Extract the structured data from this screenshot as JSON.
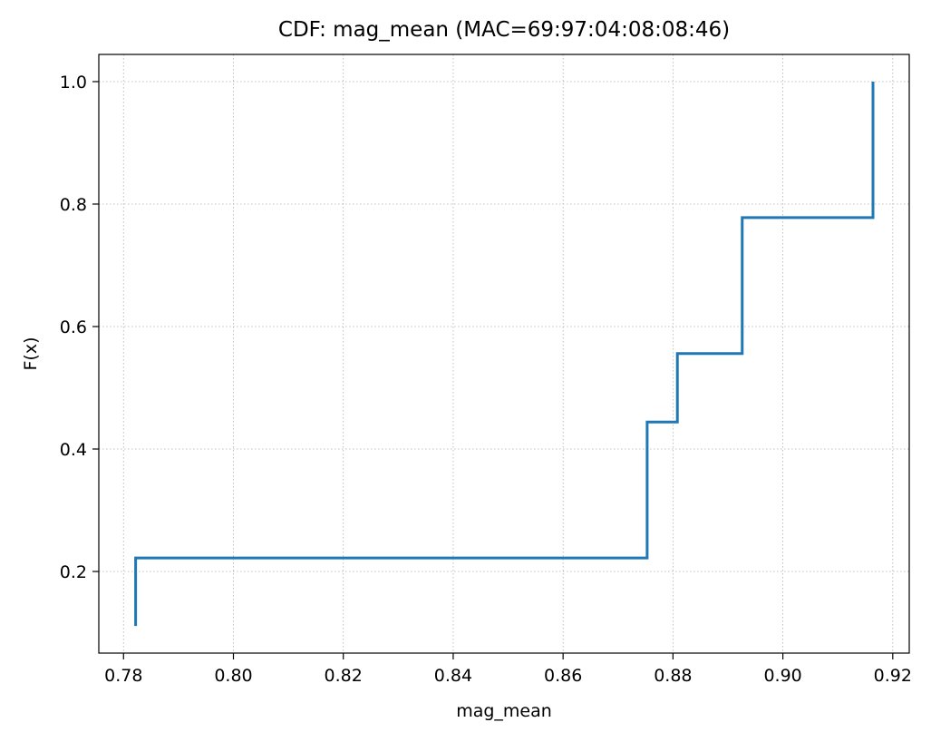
{
  "chart_data": {
    "type": "line",
    "subtype": "step-cdf",
    "title": "CDF: mag_mean (MAC=69:97:04:08:08:46)",
    "xlabel": "mag_mean",
    "ylabel": "F(x)",
    "xlim": [
      0.7755,
      0.923
    ],
    "ylim": [
      0.0667,
      1.0444
    ],
    "x_ticks": [
      0.78,
      0.8,
      0.82,
      0.84,
      0.86,
      0.88,
      0.9,
      0.92
    ],
    "x_tick_labels": [
      "0.78",
      "0.80",
      "0.82",
      "0.84",
      "0.86",
      "0.88",
      "0.90",
      "0.92"
    ],
    "y_ticks": [
      0.2,
      0.4,
      0.6,
      0.8,
      1.0
    ],
    "y_tick_labels": [
      "0.2",
      "0.4",
      "0.6",
      "0.8",
      "1.0"
    ],
    "grid": true,
    "grid_style": "dotted",
    "legend": "none",
    "series": [
      {
        "color": "#1f77b4",
        "steps": [
          {
            "x": 0.7822,
            "y": 0.111
          },
          {
            "x": 0.7822,
            "y": 0.222
          },
          {
            "x": 0.8753,
            "y": 0.222
          },
          {
            "x": 0.8753,
            "y": 0.444
          },
          {
            "x": 0.8808,
            "y": 0.444
          },
          {
            "x": 0.8808,
            "y": 0.556
          },
          {
            "x": 0.8926,
            "y": 0.556
          },
          {
            "x": 0.8926,
            "y": 0.778
          },
          {
            "x": 0.9164,
            "y": 0.778
          },
          {
            "x": 0.9164,
            "y": 1.0
          }
        ]
      }
    ]
  }
}
